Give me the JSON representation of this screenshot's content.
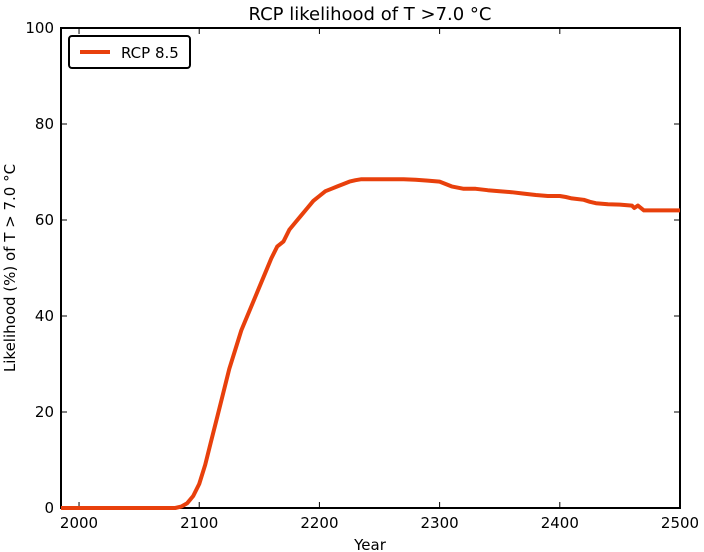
{
  "chart_data": {
    "type": "line",
    "title": "RCP likelihood of T >7.0 °C",
    "xlabel": "Year",
    "ylabel": "Likelihood (%) of T > 7.0 °C",
    "xlim": [
      1985,
      2500
    ],
    "ylim": [
      0,
      100
    ],
    "xticks": [
      2000,
      2100,
      2200,
      2300,
      2400,
      2500
    ],
    "yticks": [
      0,
      20,
      40,
      60,
      80,
      100
    ],
    "grid": false,
    "legend_position": "top-left",
    "series": [
      {
        "name": "RCP 8.5",
        "color": "#e8400c",
        "x": [
          1985,
          2000,
          2020,
          2040,
          2060,
          2080,
          2085,
          2090,
          2095,
          2100,
          2105,
          2110,
          2115,
          2120,
          2125,
          2130,
          2135,
          2140,
          2145,
          2150,
          2155,
          2160,
          2165,
          2170,
          2175,
          2180,
          2185,
          2190,
          2195,
          2200,
          2205,
          2210,
          2215,
          2220,
          2225,
          2230,
          2235,
          2240,
          2245,
          2250,
          2260,
          2270,
          2280,
          2290,
          2300,
          2305,
          2310,
          2320,
          2330,
          2340,
          2350,
          2360,
          2370,
          2380,
          2390,
          2400,
          2405,
          2410,
          2420,
          2425,
          2430,
          2440,
          2450,
          2460,
          2462,
          2465,
          2470,
          2480,
          2490,
          2500
        ],
        "values": [
          0,
          0,
          0,
          0,
          0,
          0,
          0.3,
          1,
          2.5,
          5,
          9,
          14,
          19,
          24,
          29,
          33,
          37,
          40,
          43,
          46,
          49,
          52,
          54.5,
          55.5,
          58,
          59.5,
          61,
          62.5,
          64,
          65,
          66,
          66.5,
          67,
          67.5,
          68,
          68.3,
          68.5,
          68.5,
          68.5,
          68.5,
          68.5,
          68.5,
          68.4,
          68.2,
          68,
          67.5,
          67,
          66.5,
          66.5,
          66.2,
          66,
          65.8,
          65.5,
          65.2,
          65,
          65,
          64.8,
          64.5,
          64.2,
          63.8,
          63.5,
          63.3,
          63.2,
          63,
          62.5,
          63,
          62,
          62,
          62,
          62
        ]
      }
    ]
  }
}
